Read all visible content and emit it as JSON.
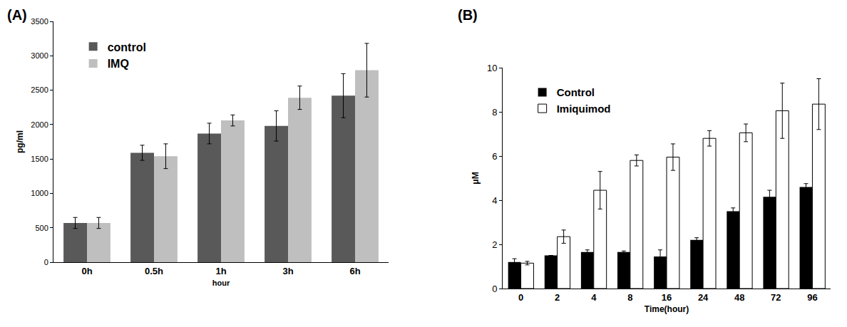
{
  "chart_data": [
    {
      "type": "bar",
      "title": "(A)",
      "xlabel": "hour",
      "ylabel": "pg/ml",
      "categories": [
        "0h",
        "0.5h",
        "1h",
        "3h",
        "6h"
      ],
      "series": [
        {
          "name": "control",
          "color": "#595959",
          "values": [
            570,
            1590,
            1870,
            1980,
            2420
          ],
          "errors": [
            80,
            110,
            150,
            220,
            320
          ]
        },
        {
          "name": "IMQ",
          "color": "#bfbfbf",
          "values": [
            570,
            1540,
            2060,
            2390,
            2790
          ],
          "errors": [
            80,
            180,
            80,
            170,
            390
          ]
        }
      ],
      "ylim": [
        0,
        3500
      ],
      "yticks": [
        0,
        500,
        1000,
        1500,
        2000,
        2500,
        3000,
        3500
      ],
      "grid": false,
      "legend": "upper left"
    },
    {
      "type": "bar",
      "title": "(B)",
      "xlabel": "Time(hour)",
      "ylabel": "μM",
      "categories": [
        "0",
        "2",
        "4",
        "8",
        "16",
        "24",
        "48",
        "72",
        "96"
      ],
      "series": [
        {
          "name": "Control",
          "color": "#000000",
          "values": [
            1.2,
            1.5,
            1.65,
            1.65,
            1.45,
            2.2,
            3.5,
            4.15,
            4.6
          ],
          "errors": [
            0.15,
            0,
            0.1,
            0.05,
            0.3,
            0.1,
            0.15,
            0.3,
            0.15
          ]
        },
        {
          "name": "Imiquimod",
          "color": "#ffffff",
          "values": [
            1.15,
            2.35,
            4.45,
            5.8,
            5.95,
            6.8,
            7.05,
            8.05,
            8.35
          ],
          "errors": [
            0.08,
            0.3,
            0.85,
            0.25,
            0.6,
            0.35,
            0.4,
            1.25,
            1.15
          ]
        }
      ],
      "ylim": [
        0,
        10
      ],
      "yticks": [
        0,
        2,
        4,
        6,
        8,
        10
      ],
      "grid": false,
      "legend": "upper left"
    }
  ]
}
